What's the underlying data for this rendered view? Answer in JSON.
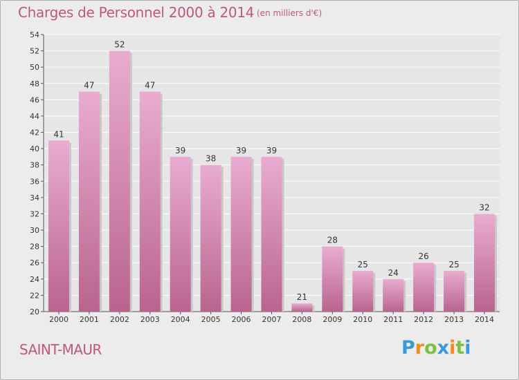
{
  "header": {
    "title": "Charges de Personnel 2000 à 2014",
    "subtitle": "(en milliers d'€)"
  },
  "footer": {
    "city": "SAINT-MAUR",
    "logo": {
      "letters": [
        "P",
        "r",
        "o",
        "x",
        "i",
        "t",
        "i"
      ],
      "colors": [
        "#3a9ad9",
        "#f28c1e",
        "#7cc142",
        "#3a9ad9",
        "#f28c1e",
        "#7cc142",
        "#3a9ad9"
      ]
    }
  },
  "colors": {
    "title": "#c0557f",
    "bar_light": "#e9acd0",
    "bar_dark": "#b9648f",
    "background": "#ececec"
  },
  "chart_data": {
    "type": "bar",
    "categories": [
      "2000",
      "2001",
      "2002",
      "2003",
      "2004",
      "2005",
      "2006",
      "2007",
      "2008",
      "2009",
      "2010",
      "2011",
      "2012",
      "2013",
      "2014"
    ],
    "values": [
      41,
      47,
      52,
      47,
      39,
      38,
      39,
      39,
      21,
      28,
      25,
      24,
      26,
      25,
      32
    ],
    "title": "Charges de Personnel 2000 à 2014",
    "xlabel": "",
    "ylabel": "",
    "ylim": [
      20,
      54
    ],
    "yticks": [
      20,
      22,
      24,
      26,
      28,
      30,
      32,
      34,
      36,
      38,
      40,
      42,
      44,
      46,
      48,
      50,
      52,
      54
    ],
    "grid": true,
    "data_labels": true
  }
}
